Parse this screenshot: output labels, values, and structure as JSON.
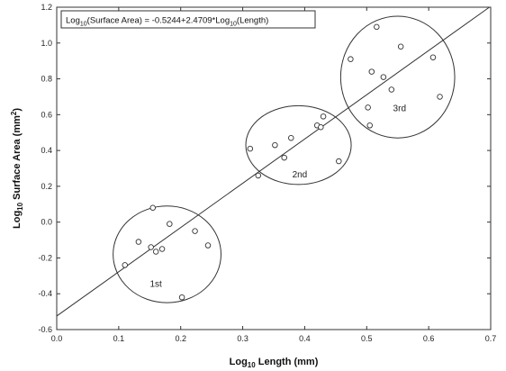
{
  "chart_data": {
    "type": "scatter",
    "xlim": [
      0.0,
      0.7
    ],
    "ylim": [
      -0.6,
      1.2
    ],
    "xticks": [
      "0.0",
      "0.1",
      "0.2",
      "0.3",
      "0.4",
      "0.5",
      "0.6",
      "0.7"
    ],
    "yticks": [
      "-0.6",
      "-0.4",
      "-0.2",
      "0.0",
      "0.2",
      "0.4",
      "0.6",
      "0.8",
      "1.0",
      "1.2"
    ],
    "xlabel": {
      "main": "Log",
      "sub": "10",
      "rest": " Length (mm)"
    },
    "ylabel": {
      "main": "Log",
      "sub": "10",
      "rest": " Surface Area (mm",
      "sup": "2",
      "end": ")"
    },
    "grid": false,
    "equation": {
      "p1": "Log",
      "s1": "10",
      "p2": "(Surface Area) = -0.5244+2.4709*Log",
      "s2": "10",
      "p3": "(Length)"
    },
    "fit_line": {
      "intercept": -0.5244,
      "slope": 2.4709
    },
    "points": [
      {
        "x": 0.11,
        "y": -0.24
      },
      {
        "x": 0.132,
        "y": -0.11
      },
      {
        "x": 0.152,
        "y": -0.14
      },
      {
        "x": 0.155,
        "y": 0.08
      },
      {
        "x": 0.16,
        "y": -0.165
      },
      {
        "x": 0.17,
        "y": -0.15
      },
      {
        "x": 0.182,
        "y": -0.01
      },
      {
        "x": 0.202,
        "y": -0.42
      },
      {
        "x": 0.223,
        "y": -0.05
      },
      {
        "x": 0.244,
        "y": -0.13
      },
      {
        "x": 0.312,
        "y": 0.41
      },
      {
        "x": 0.325,
        "y": 0.26
      },
      {
        "x": 0.352,
        "y": 0.43
      },
      {
        "x": 0.367,
        "y": 0.36
      },
      {
        "x": 0.378,
        "y": 0.47
      },
      {
        "x": 0.42,
        "y": 0.54
      },
      {
        "x": 0.426,
        "y": 0.53
      },
      {
        "x": 0.43,
        "y": 0.59
      },
      {
        "x": 0.455,
        "y": 0.34
      },
      {
        "x": 0.474,
        "y": 0.91
      },
      {
        "x": 0.502,
        "y": 0.64
      },
      {
        "x": 0.505,
        "y": 0.54
      },
      {
        "x": 0.508,
        "y": 0.84
      },
      {
        "x": 0.516,
        "y": 1.09
      },
      {
        "x": 0.527,
        "y": 0.81
      },
      {
        "x": 0.54,
        "y": 0.74
      },
      {
        "x": 0.555,
        "y": 0.98
      },
      {
        "x": 0.607,
        "y": 0.92
      },
      {
        "x": 0.618,
        "y": 0.7
      }
    ],
    "clusters": [
      {
        "label": "1st",
        "cx": 0.178,
        "cy": -0.18,
        "rx": 0.087,
        "ry": 0.27,
        "label_x": 0.16,
        "label_y": -0.36
      },
      {
        "label": "2nd",
        "cx": 0.39,
        "cy": 0.43,
        "rx": 0.085,
        "ry": 0.22,
        "label_x": 0.392,
        "label_y": 0.25
      },
      {
        "label": "3rd",
        "cx": 0.55,
        "cy": 0.81,
        "rx": 0.092,
        "ry": 0.34,
        "label_x": 0.553,
        "label_y": 0.62
      }
    ]
  }
}
